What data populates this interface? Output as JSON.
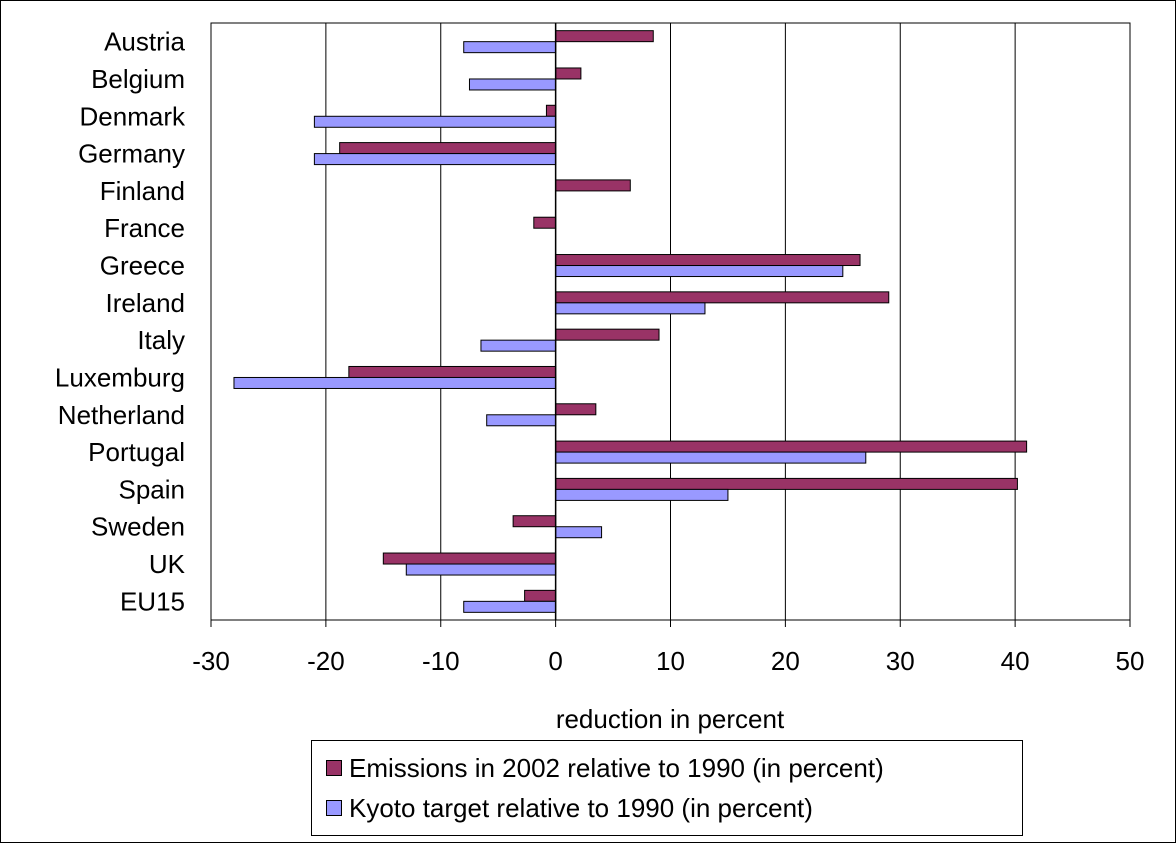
{
  "chart_data": {
    "type": "bar",
    "orientation": "horizontal",
    "categories": [
      "Austria",
      "Belgium",
      "Denmark",
      "Germany",
      "Finland",
      "France",
      "Greece",
      "Ireland",
      "Italy",
      "Luxemburg",
      "Netherland",
      "Portugal",
      "Spain",
      "Sweden",
      "UK",
      "EU15"
    ],
    "series": [
      {
        "name": "Emissions in 2002 relative to 1990 (in percent)",
        "color": "#993366",
        "values": [
          8.5,
          2.2,
          -0.8,
          -18.8,
          6.5,
          -1.9,
          26.5,
          29.0,
          9.0,
          -18.0,
          3.5,
          41.0,
          40.2,
          -3.7,
          -15.0,
          -2.7
        ]
      },
      {
        "name": "Kyoto target relative to 1990 (in percent)",
        "color": "#9999ff",
        "values": [
          -8.0,
          -7.5,
          -21.0,
          -21.0,
          0,
          0,
          25.0,
          13.0,
          -6.5,
          -28.0,
          -6.0,
          27.0,
          15.0,
          4.0,
          -13.0,
          -8.0
        ]
      }
    ],
    "xlabel": "reduction in percent",
    "xlim": [
      -30,
      50
    ],
    "xticks": [
      -30,
      -20,
      -10,
      0,
      10,
      20,
      30,
      40,
      50
    ],
    "grid": true,
    "legend_position": "bottom"
  }
}
